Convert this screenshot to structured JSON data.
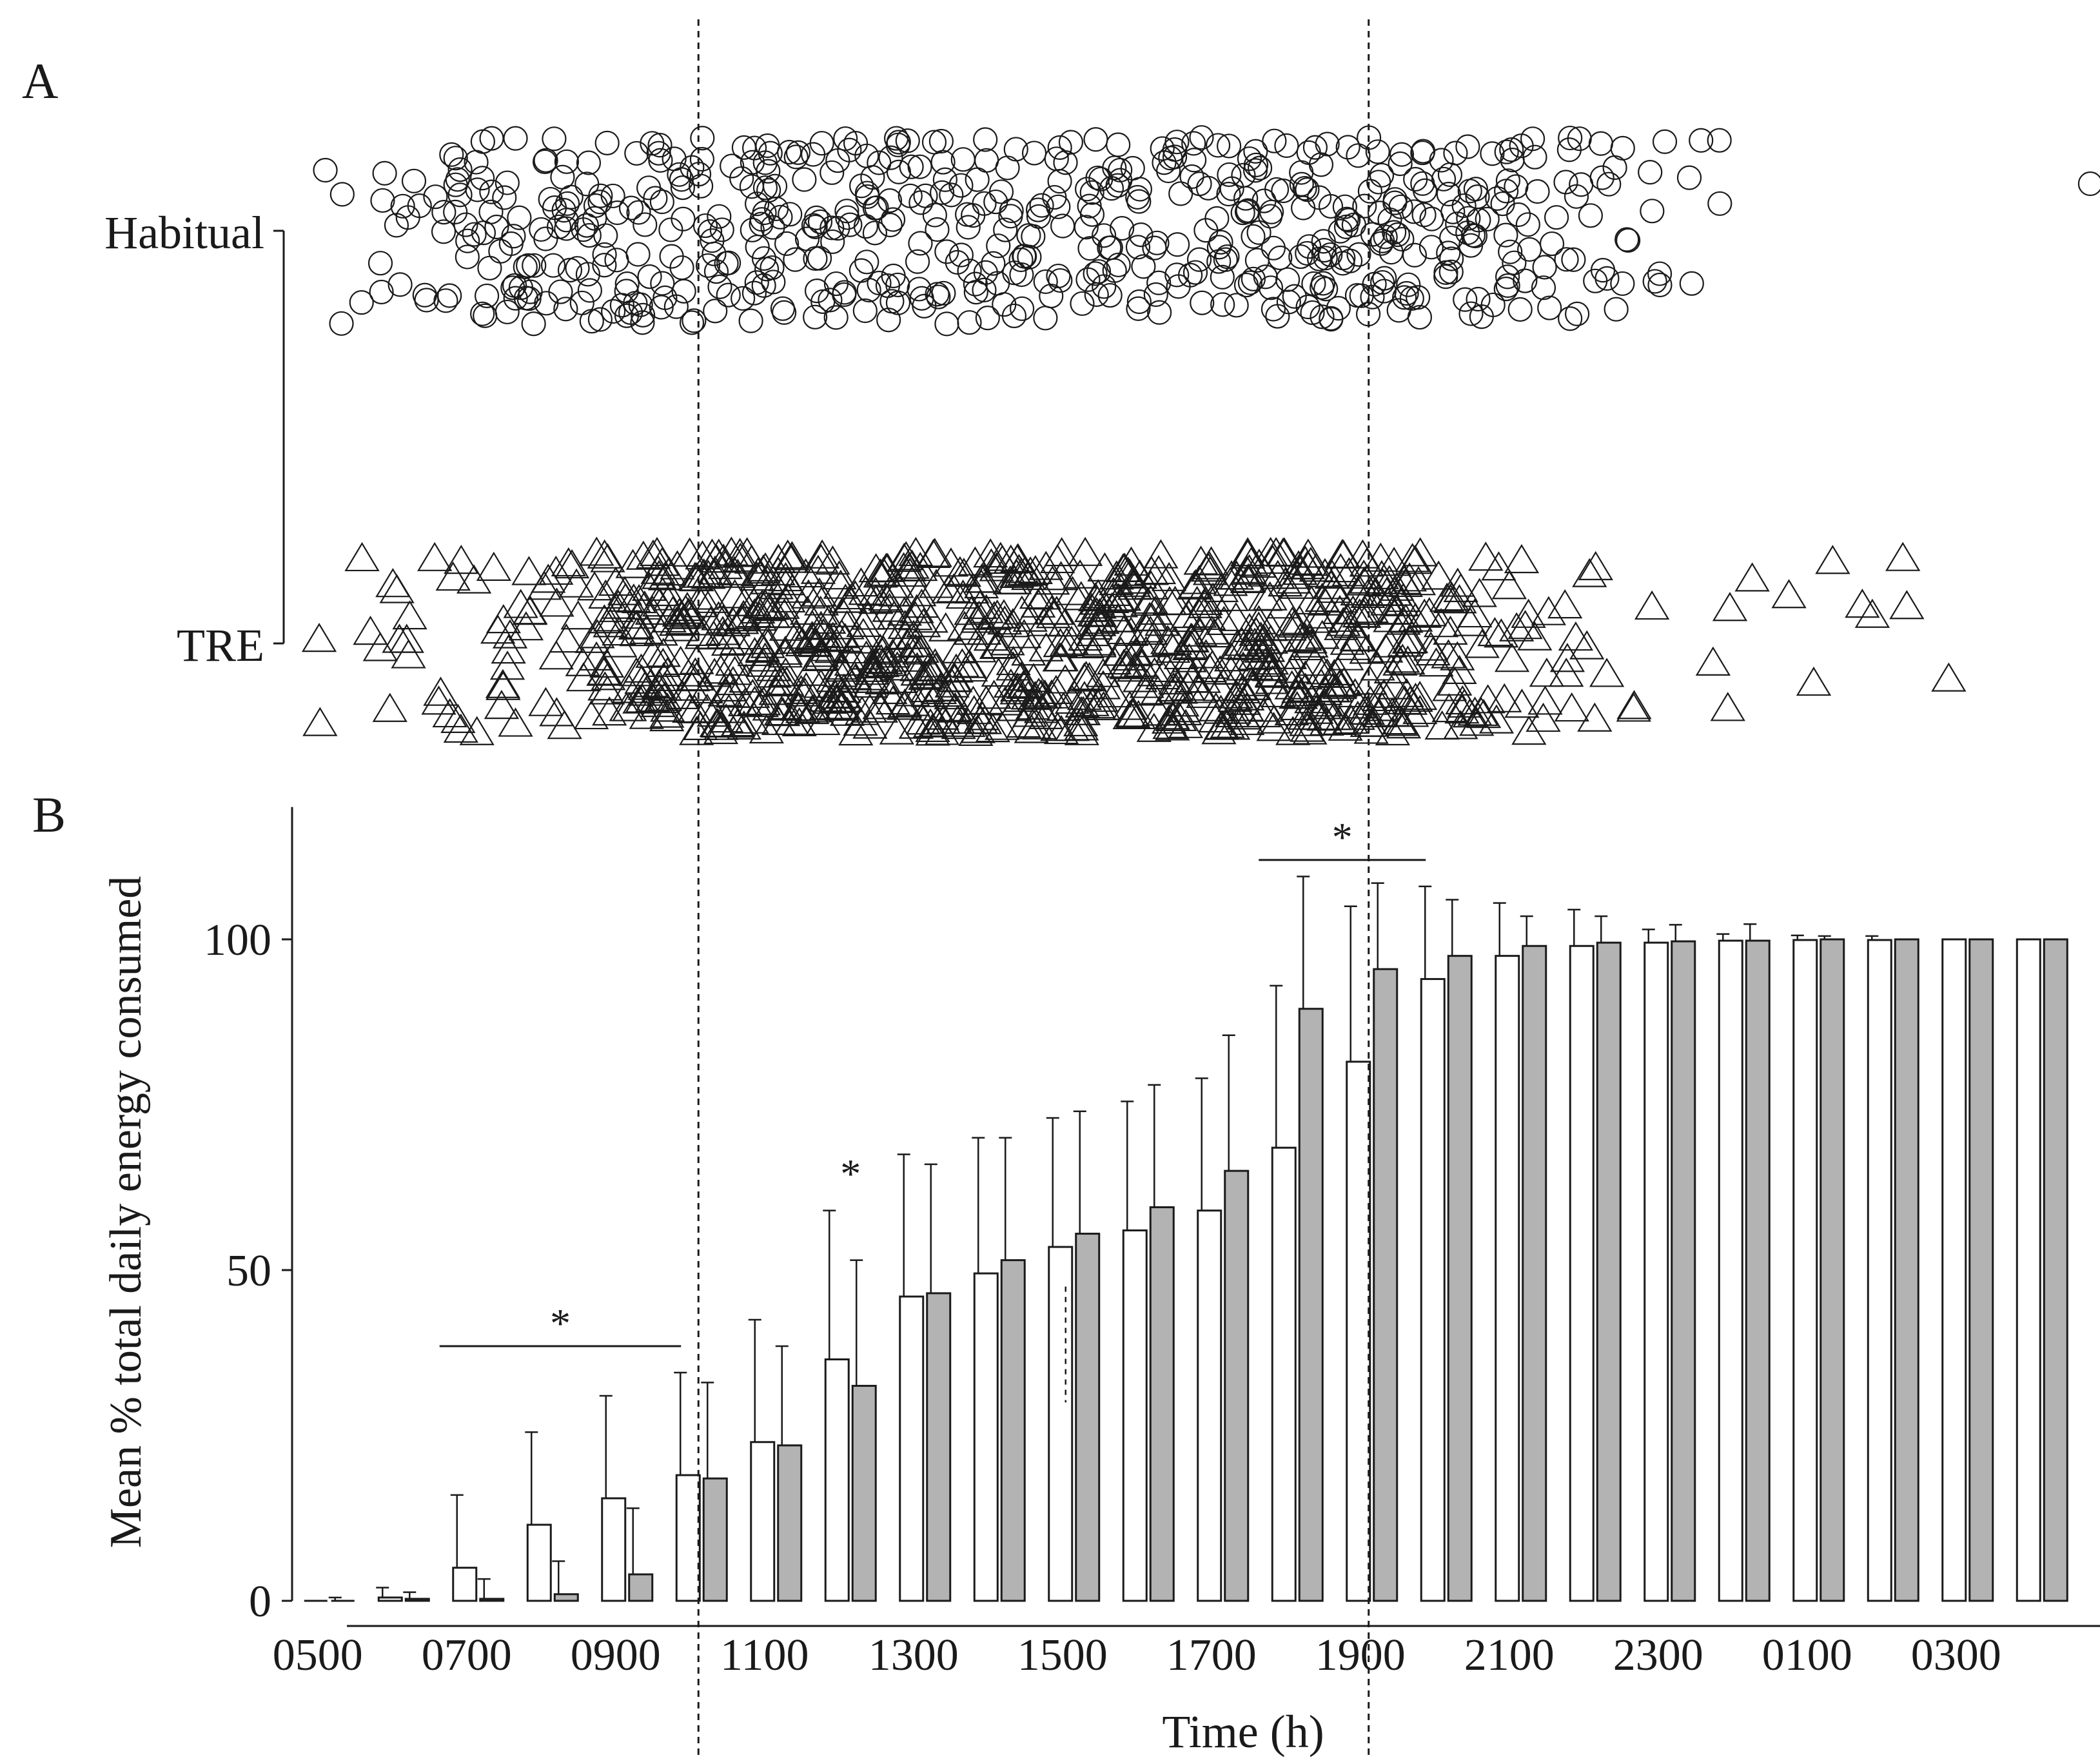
{
  "panel_a": {
    "label": "A",
    "groups": [
      "Habitual",
      "TRE"
    ],
    "habitual_marker": "circle",
    "tre_marker": "triangle"
  },
  "panel_b": {
    "label": "B",
    "ylabel": "Mean % total daily energy consumed",
    "xlabel": "Time (h)",
    "significance_marker": "*"
  },
  "colors": {
    "habitual_fill": "#ffffff",
    "tre_fill": "#b3b3b3",
    "stroke": "#1a1a1a"
  },
  "chart_data": [
    {
      "type": "scatter",
      "panel": "A",
      "title": "",
      "categories": [
        "Habitual",
        "TRE"
      ],
      "xlim": [
        5,
        29
      ],
      "xlabel": "",
      "note": "Individual eating occasions by clock time (jittered vertically). Dashed reference lines at 1000 and 1900 h.",
      "reference_lines": [
        10,
        19
      ],
      "habitual_outliers": [
        5.1,
        28.8
      ],
      "series": [
        {
          "name": "Habitual",
          "marker": "circle",
          "density": [
            [
              5.0,
              0.3
            ],
            [
              5.5,
              1.0
            ],
            [
              6.0,
              2.0
            ],
            [
              6.5,
              3.4
            ],
            [
              7.0,
              5.0
            ],
            [
              7.5,
              6.0
            ],
            [
              8.0,
              6.4
            ],
            [
              8.5,
              6.6
            ],
            [
              9.0,
              6.4
            ],
            [
              9.5,
              6.0
            ],
            [
              10.0,
              6.0
            ],
            [
              10.5,
              6.2
            ],
            [
              11.0,
              6.8
            ],
            [
              11.5,
              7.0
            ],
            [
              12.0,
              6.8
            ],
            [
              12.5,
              6.8
            ],
            [
              13.0,
              6.6
            ],
            [
              13.5,
              6.4
            ],
            [
              14.0,
              6.2
            ],
            [
              14.5,
              5.8
            ],
            [
              15.0,
              5.4
            ],
            [
              15.5,
              5.2
            ],
            [
              16.0,
              5.4
            ],
            [
              16.5,
              5.8
            ],
            [
              17.0,
              6.4
            ],
            [
              17.5,
              7.0
            ],
            [
              18.0,
              7.4
            ],
            [
              18.5,
              7.6
            ],
            [
              19.0,
              7.6
            ],
            [
              19.5,
              7.4
            ],
            [
              20.0,
              7.2
            ],
            [
              20.5,
              6.6
            ],
            [
              21.0,
              5.8
            ],
            [
              21.5,
              4.8
            ],
            [
              22.0,
              3.6
            ],
            [
              22.5,
              2.6
            ],
            [
              23.0,
              1.9
            ],
            [
              23.5,
              1.3
            ],
            [
              24.0,
              0.6
            ]
          ]
        },
        {
          "name": "TRE",
          "marker": "triangle",
          "density": [
            [
              5.0,
              0.4
            ],
            [
              5.5,
              0.8
            ],
            [
              6.0,
              1.6
            ],
            [
              6.5,
              2.4
            ],
            [
              7.0,
              2.6
            ],
            [
              7.5,
              2.6
            ],
            [
              8.0,
              3.4
            ],
            [
              8.5,
              5.5
            ],
            [
              9.0,
              9.0
            ],
            [
              9.5,
              12.5
            ],
            [
              10.0,
              14.0
            ],
            [
              10.5,
              14.6
            ],
            [
              11.0,
              15.0
            ],
            [
              11.5,
              15.0
            ],
            [
              12.0,
              14.6
            ],
            [
              12.5,
              14.2
            ],
            [
              13.0,
              14.0
            ],
            [
              13.5,
              13.8
            ],
            [
              14.0,
              13.4
            ],
            [
              14.5,
              13.0
            ],
            [
              15.0,
              12.8
            ],
            [
              15.5,
              12.6
            ],
            [
              16.0,
              12.6
            ],
            [
              16.5,
              13.0
            ],
            [
              17.0,
              13.8
            ],
            [
              17.5,
              14.6
            ],
            [
              18.0,
              15.2
            ],
            [
              18.5,
              15.2
            ],
            [
              19.0,
              14.6
            ],
            [
              19.5,
              12.5
            ],
            [
              20.0,
              9.0
            ],
            [
              20.5,
              6.0
            ],
            [
              21.0,
              4.0
            ],
            [
              21.5,
              2.8
            ],
            [
              22.0,
              2.0
            ],
            [
              22.5,
              1.4
            ],
            [
              23.0,
              0.8
            ],
            [
              24.0,
              0.2
            ],
            [
              25.0,
              0.4
            ],
            [
              25.5,
              0.6
            ],
            [
              26.0,
              0.6
            ],
            [
              26.5,
              0.4
            ],
            [
              27.0,
              0.3
            ]
          ]
        }
      ]
    },
    {
      "type": "bar",
      "panel": "B",
      "title": "",
      "xlabel": "Time (h)",
      "ylabel": "Mean % total daily energy consumed",
      "ylim": [
        0,
        120
      ],
      "yticks": [
        0,
        50,
        100
      ],
      "xtick_labels": [
        "0500",
        "0700",
        "0900",
        "1100",
        "1300",
        "1500",
        "1700",
        "1900",
        "2100",
        "2300",
        "0100",
        "0300"
      ],
      "categories": [
        "0500",
        "0600",
        "0700",
        "0800",
        "0900",
        "1000",
        "1100",
        "1200",
        "1300",
        "1400",
        "1500",
        "1600",
        "1700",
        "1800",
        "1900",
        "2000",
        "2100",
        "2200",
        "2300",
        "0000",
        "0100",
        "0200",
        "0300",
        "0400"
      ],
      "series": [
        {
          "name": "Habitual",
          "color": "#ffffff",
          "values": [
            0,
            0.5,
            5,
            11.5,
            15.5,
            19,
            24,
            36.5,
            46,
            49.5,
            53.5,
            56,
            59,
            68.5,
            81.5,
            94,
            97.5,
            99,
            99.5,
            99.8,
            99.9,
            99.9,
            100,
            100
          ],
          "error": [
            0,
            1.5,
            11,
            14,
            15.5,
            15.5,
            18.5,
            22.5,
            21.5,
            20.5,
            19.5,
            19.5,
            20,
            24.5,
            23.5,
            14,
            8,
            5.5,
            2,
            1,
            0.7,
            0.6,
            0,
            0
          ]
        },
        {
          "name": "TRE",
          "color": "#b3b3b3",
          "values": [
            0,
            0.3,
            0.3,
            1,
            4,
            18.5,
            23.5,
            32.5,
            46.5,
            51.5,
            55.5,
            59.5,
            65,
            89.5,
            95.5,
            97.5,
            99,
            99.5,
            99.7,
            99.8,
            100,
            100,
            100,
            100
          ],
          "error": [
            0.5,
            1,
            3,
            5,
            10,
            14.5,
            15,
            19,
            19.5,
            18.5,
            18.5,
            18.5,
            20.5,
            20,
            13,
            8.5,
            4.5,
            4,
            2.5,
            2.5,
            0.5,
            0,
            0,
            0
          ]
        }
      ],
      "significance": [
        {
          "label": "*",
          "type": "range",
          "from": "0700",
          "to": "1000",
          "y": 38.5
        },
        {
          "label": "*",
          "type": "point",
          "at": "1200",
          "y": 65
        },
        {
          "label": "*",
          "type": "range",
          "from": "1800",
          "to": "2000",
          "y": 112
        }
      ],
      "reference_lines": [
        "1000",
        "1900"
      ]
    }
  ]
}
